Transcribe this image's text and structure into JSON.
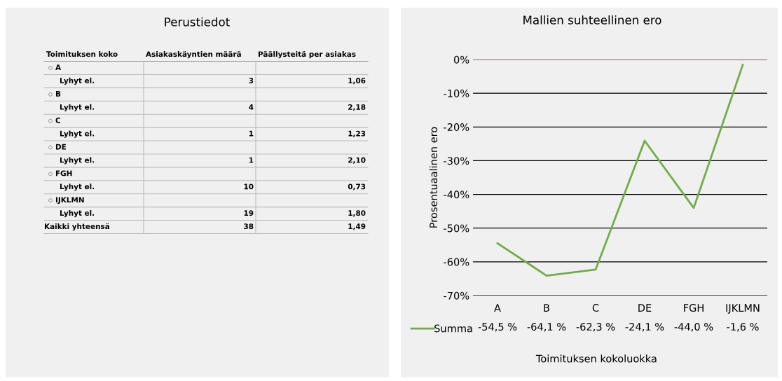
{
  "chart_data": [
    {
      "type": "other",
      "title": "Perustiedot",
      "ylabel": "Toimituksen koko",
      "categories": [
        "Asiakaskäyntien määrä",
        "Päällysteitä per asiakas"
      ],
      "y_categories": [
        "A",
        "Lyhyt el.",
        "B",
        "Lyhyt el.",
        "C",
        "Lyhyt el.",
        "DE",
        "Lyhyt el.",
        "FGH",
        "Lyhyt el.",
        "IJKLMN",
        "Lyhyt el.",
        "Kaikki yhteensä"
      ],
      "cell_labels": [
        [
          null,
          null
        ],
        [
          "3",
          "1,06"
        ],
        [
          null,
          null
        ],
        [
          "4",
          "2,18"
        ],
        [
          null,
          null
        ],
        [
          "1",
          "1,23"
        ],
        [
          null,
          null
        ],
        [
          "1",
          "2,10"
        ],
        [
          null,
          null
        ],
        [
          "10",
          "0,73"
        ],
        [
          null,
          null
        ],
        [
          "19",
          "1,80"
        ],
        [
          "38",
          "1,49"
        ]
      ]
    },
    {
      "type": "line",
      "title": "Mallien suhteellinen ero",
      "xlabel": "Toimituksen kokoluokka",
      "ylabel": "Prosentuaalinen ero",
      "categories": [
        "A",
        "B",
        "C",
        "DE",
        "FGH",
        "IJKLMN"
      ],
      "series": [
        {
          "name": "Summa",
          "color": "#70ad47",
          "values": [
            -54.5,
            -64.1,
            -62.3,
            -24.1,
            -44.0,
            -1.6
          ],
          "value_labels": [
            "-54,5 %",
            "-64,1 %",
            "-62,3 %",
            "-24,1 %",
            "-44,0 %",
            "-1,6 %"
          ]
        }
      ],
      "ylim": [
        -70,
        0
      ],
      "yticks": [
        {
          "value": 0,
          "label": "0%"
        },
        {
          "value": -10,
          "label": "-10%"
        },
        {
          "value": -20,
          "label": "-20%"
        },
        {
          "value": -30,
          "label": "-30%"
        },
        {
          "value": -40,
          "label": "-40%"
        },
        {
          "value": -50,
          "label": "-50%"
        },
        {
          "value": -60,
          "label": "-60%"
        },
        {
          "value": -70,
          "label": "-70%"
        }
      ],
      "ref_lines": [
        {
          "axis": "y",
          "value": 0,
          "color": "#d9544f"
        }
      ],
      "grid": "y",
      "legend": "bottom"
    }
  ]
}
